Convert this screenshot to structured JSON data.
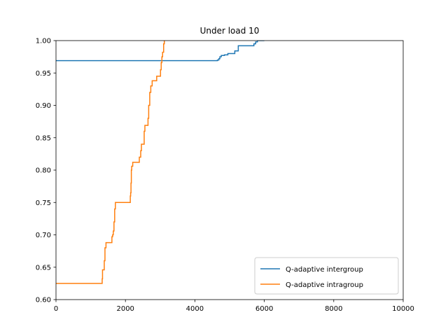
{
  "chart_data": {
    "type": "line",
    "title": "Under load 10",
    "xlabel": "",
    "ylabel": "",
    "xlim": [
      0,
      10000
    ],
    "ylim": [
      0.6,
      1.0
    ],
    "x_ticks": [
      0,
      2000,
      4000,
      6000,
      8000,
      10000
    ],
    "y_ticks": [
      0.6,
      0.65,
      0.7,
      0.75,
      0.8,
      0.85,
      0.9,
      0.95,
      1.0
    ],
    "x_tick_labels": [
      "0",
      "2000",
      "4000",
      "6000",
      "8000",
      "10000"
    ],
    "y_tick_labels": [
      "0.60",
      "0.65",
      "0.70",
      "0.75",
      "0.80",
      "0.85",
      "0.90",
      "0.95",
      "1.00"
    ],
    "grid": false,
    "legend_position": "lower-right",
    "series": [
      {
        "name": "Q-adaptive intergroup",
        "color": "#1f77b4",
        "points": [
          [
            0,
            0.969
          ],
          [
            4620,
            0.969
          ],
          [
            4650,
            0.97
          ],
          [
            4690,
            0.972
          ],
          [
            4720,
            0.975
          ],
          [
            4760,
            0.977
          ],
          [
            4850,
            0.978
          ],
          [
            4950,
            0.98
          ],
          [
            5150,
            0.984
          ],
          [
            5250,
            0.992
          ],
          [
            5650,
            0.992
          ],
          [
            5700,
            0.995
          ],
          [
            5750,
            0.998
          ],
          [
            5800,
            1.0
          ],
          [
            6000,
            1.0
          ]
        ]
      },
      {
        "name": "Q-adaptive intragroup",
        "color": "#ff7f0e",
        "points": [
          [
            0,
            0.625
          ],
          [
            1320,
            0.625
          ],
          [
            1330,
            0.632
          ],
          [
            1340,
            0.646
          ],
          [
            1380,
            0.646
          ],
          [
            1390,
            0.66
          ],
          [
            1410,
            0.68
          ],
          [
            1440,
            0.688
          ],
          [
            1600,
            0.688
          ],
          [
            1610,
            0.697
          ],
          [
            1630,
            0.7
          ],
          [
            1650,
            0.706
          ],
          [
            1670,
            0.72
          ],
          [
            1690,
            0.74
          ],
          [
            1710,
            0.75
          ],
          [
            2130,
            0.75
          ],
          [
            2140,
            0.76
          ],
          [
            2150,
            0.765
          ],
          [
            2160,
            0.78
          ],
          [
            2170,
            0.8
          ],
          [
            2180,
            0.806
          ],
          [
            2200,
            0.806
          ],
          [
            2210,
            0.812
          ],
          [
            2380,
            0.812
          ],
          [
            2400,
            0.82
          ],
          [
            2440,
            0.83
          ],
          [
            2460,
            0.84
          ],
          [
            2520,
            0.84
          ],
          [
            2540,
            0.86
          ],
          [
            2560,
            0.869
          ],
          [
            2630,
            0.869
          ],
          [
            2650,
            0.88
          ],
          [
            2670,
            0.9
          ],
          [
            2700,
            0.92
          ],
          [
            2730,
            0.93
          ],
          [
            2770,
            0.938
          ],
          [
            2880,
            0.938
          ],
          [
            2900,
            0.945
          ],
          [
            3000,
            0.945
          ],
          [
            3010,
            0.955
          ],
          [
            3030,
            0.966
          ],
          [
            3050,
            0.975
          ],
          [
            3070,
            0.982
          ],
          [
            3100,
            0.995
          ],
          [
            3120,
            1.0
          ]
        ]
      }
    ]
  }
}
